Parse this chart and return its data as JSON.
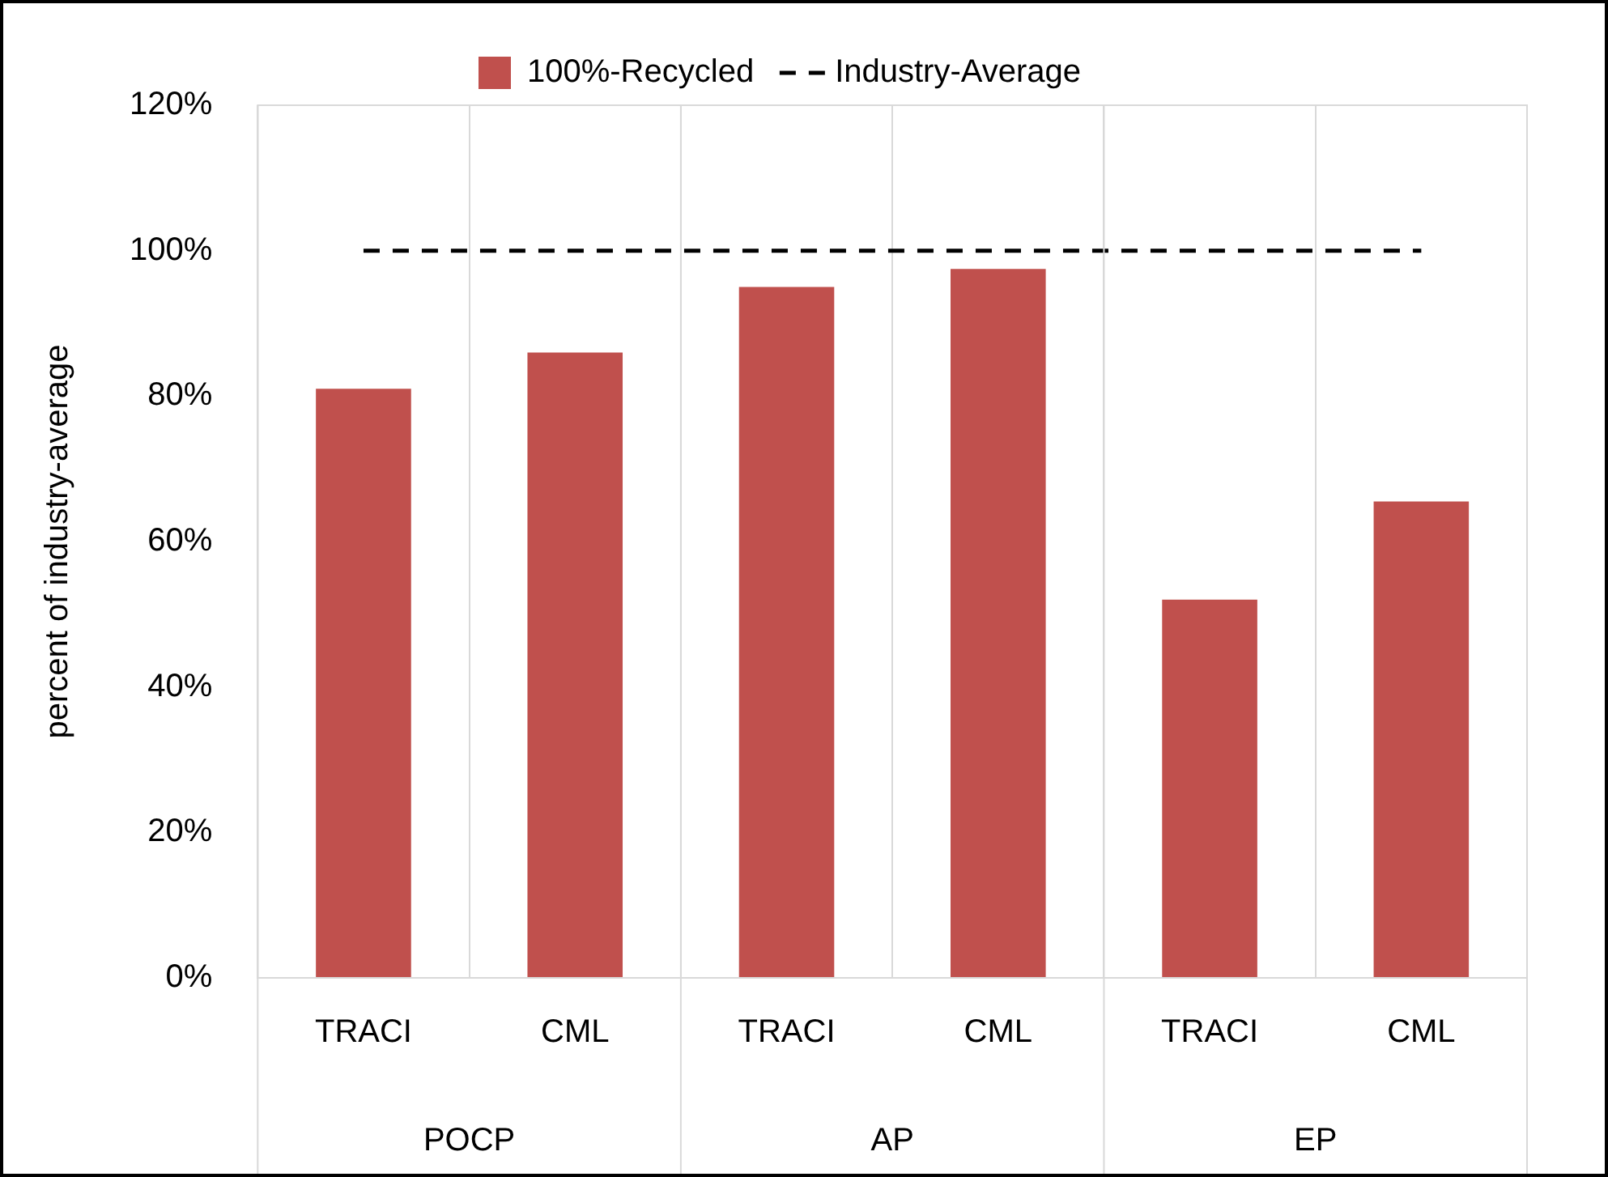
{
  "chart_data": {
    "type": "bar",
    "ylabel": "percent of industry-average",
    "categories": [
      "TRACI",
      "CML",
      "TRACI",
      "CML",
      "TRACI",
      "CML"
    ],
    "series": [
      {
        "name": "100%-Recycled",
        "color": "#c0504d",
        "values": [
          81,
          86,
          95,
          97.5,
          52,
          65.5
        ]
      },
      {
        "name": "Industry-Average",
        "type": "line",
        "color": "#000000",
        "line_style": "dashed",
        "marker": "none",
        "values": [
          100,
          100,
          100,
          100,
          100,
          100
        ]
      }
    ],
    "ylim": [
      0,
      120
    ],
    "yticks": [
      {
        "value": 0,
        "label": "0%"
      },
      {
        "value": 20,
        "label": "20%"
      },
      {
        "value": 40,
        "label": "40%"
      },
      {
        "value": 60,
        "label": "60%"
      },
      {
        "value": 80,
        "label": "80%"
      },
      {
        "value": 100,
        "label": "100%"
      },
      {
        "value": 120,
        "label": "120%"
      }
    ],
    "annotations": [
      "POCP",
      "AP",
      "EP"
    ],
    "grid": "x",
    "legend": "top"
  }
}
